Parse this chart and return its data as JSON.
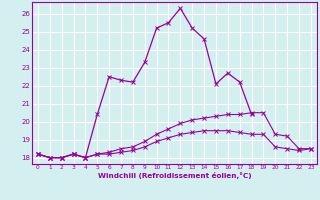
{
  "x": [
    0,
    1,
    2,
    3,
    4,
    5,
    6,
    7,
    8,
    9,
    10,
    11,
    12,
    13,
    14,
    15,
    16,
    17,
    18,
    19,
    20,
    21,
    22,
    23
  ],
  "line_main": [
    18.2,
    18.0,
    18.0,
    18.2,
    18.0,
    20.4,
    22.5,
    22.3,
    22.2,
    23.3,
    25.2,
    25.5,
    26.3,
    25.2,
    24.6,
    22.1,
    22.7,
    22.2,
    20.4,
    null,
    null,
    null,
    null,
    null
  ],
  "line_upper": [
    18.2,
    18.0,
    18.0,
    18.2,
    18.0,
    18.2,
    18.3,
    18.5,
    18.6,
    18.9,
    19.3,
    19.6,
    19.9,
    20.1,
    20.2,
    20.3,
    20.4,
    20.4,
    20.5,
    20.5,
    19.3,
    19.2,
    18.5,
    18.5
  ],
  "line_lower": [
    18.2,
    18.0,
    18.0,
    18.2,
    18.0,
    18.2,
    18.2,
    18.3,
    18.4,
    18.6,
    18.9,
    19.1,
    19.3,
    19.4,
    19.5,
    19.5,
    19.5,
    19.4,
    19.3,
    19.3,
    18.6,
    18.5,
    18.4,
    18.5
  ],
  "color": "#990099",
  "bg_color": "#d4efef",
  "grid_color": "#b8dede",
  "ylabel_ticks": [
    18,
    19,
    20,
    21,
    22,
    23,
    24,
    25,
    26
  ],
  "xlabel_ticks": [
    0,
    1,
    2,
    3,
    4,
    5,
    6,
    7,
    8,
    9,
    10,
    11,
    12,
    13,
    14,
    15,
    16,
    17,
    18,
    19,
    20,
    21,
    22,
    23
  ],
  "xlabel": "Windchill (Refroidissement éolien,°C)",
  "ylim": [
    17.65,
    26.65
  ],
  "xlim": [
    -0.5,
    23.5
  ],
  "figsize": [
    3.2,
    2.0
  ],
  "dpi": 100
}
